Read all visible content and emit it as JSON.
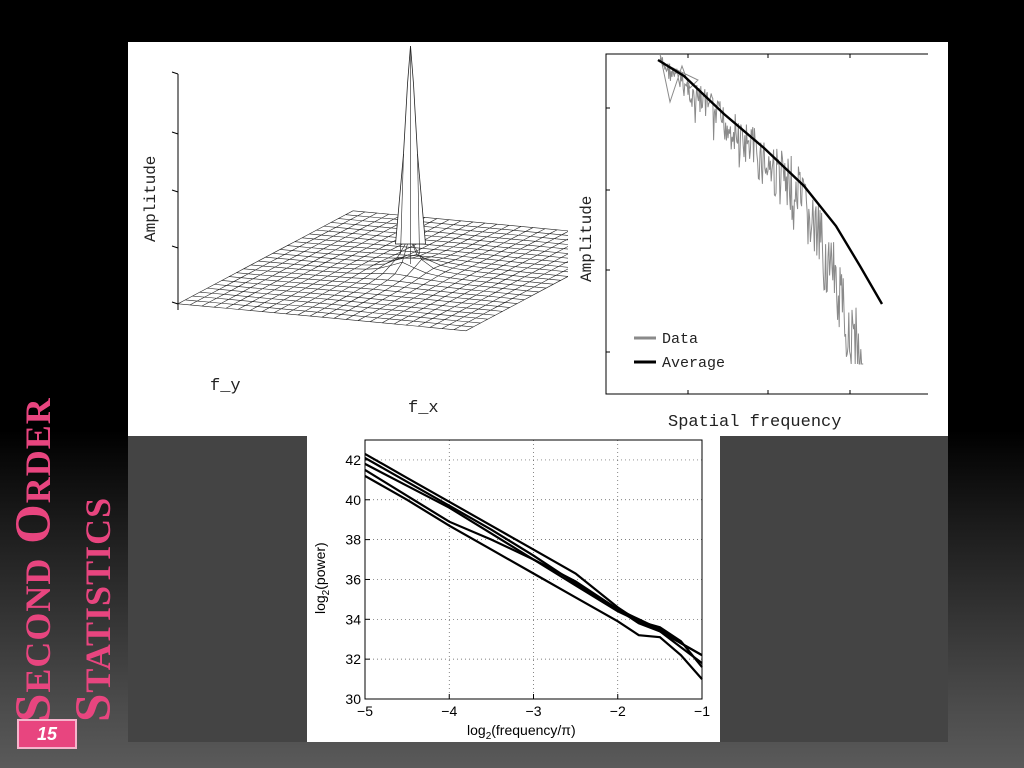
{
  "slide": {
    "title_line1": "Second Order",
    "title_line2": "Statistics",
    "page_number": "15",
    "accent_color": "#e8457f"
  },
  "chart_data": [
    {
      "type": "surface",
      "xlabel": "f_x",
      "ylabel": "f_y",
      "zlabel": "Amplitude",
      "description_of_shape": "sharp central peak at zero frequency, falling off rapidly"
    },
    {
      "type": "line",
      "xlabel": "Spatial frequency",
      "ylabel": "Amplitude",
      "xscale": "log",
      "yscale": "log",
      "legend": [
        "Data",
        "Average"
      ],
      "legend_position": "bottom-left",
      "series": [
        {
          "name": "Data",
          "color": "#8a8a8a"
        },
        {
          "name": "Average",
          "color": "#000000"
        }
      ]
    },
    {
      "type": "line",
      "xlabel_prefix": "log",
      "xlabel_sub": "2",
      "xlabel_suffix": "(frequency/π)",
      "ylabel_prefix": "log",
      "ylabel_sub": "2",
      "ylabel_suffix": "(power)",
      "xlim": [
        -5,
        -1
      ],
      "ylim": [
        30,
        43
      ],
      "grid": true,
      "x_ticks": [
        "−5",
        "−4",
        "−3",
        "−2",
        "−1"
      ],
      "y_ticks": [
        "30",
        "32",
        "34",
        "36",
        "38",
        "40",
        "42"
      ],
      "series": [
        {
          "x": [
            -5,
            -4.5,
            -4,
            -3.5,
            -3,
            -2.5,
            -2,
            -1.75,
            -1.5,
            -1.25,
            -1
          ],
          "y": [
            42.3,
            41.1,
            39.9,
            38.7,
            37.5,
            36.3,
            34.6,
            33.9,
            33.4,
            32.6,
            31.8
          ]
        },
        {
          "x": [
            -5,
            -4.5,
            -4,
            -3.5,
            -3,
            -2.5,
            -2,
            -1.75,
            -1.5,
            -1.25,
            -1
          ],
          "y": [
            42.1,
            40.9,
            39.7,
            38.5,
            37.2,
            35.8,
            34.5,
            34.0,
            33.5,
            32.8,
            32.2
          ]
        },
        {
          "x": [
            -5,
            -4.5,
            -4,
            -3.5,
            -3,
            -2.5,
            -2,
            -1.75,
            -1.5,
            -1.25,
            -1
          ],
          "y": [
            41.8,
            40.7,
            39.6,
            38.3,
            37.0,
            35.7,
            34.4,
            33.9,
            33.6,
            32.9,
            31.6
          ]
        },
        {
          "x": [
            -5,
            -4.5,
            -4,
            -3.5,
            -3,
            -2.5,
            -2,
            -1.75,
            -1.5,
            -1.25,
            -1
          ],
          "y": [
            41.5,
            40.2,
            38.9,
            38.0,
            37.0,
            35.9,
            34.5,
            33.8,
            33.4,
            32.8,
            32.2
          ]
        },
        {
          "x": [
            -5,
            -4.5,
            -4,
            -3.5,
            -3,
            -2.5,
            -2,
            -1.75,
            -1.5,
            -1.25,
            -1
          ],
          "y": [
            41.2,
            40.0,
            38.7,
            37.5,
            36.3,
            35.1,
            33.9,
            33.2,
            33.1,
            32.2,
            31.0
          ]
        }
      ]
    }
  ]
}
